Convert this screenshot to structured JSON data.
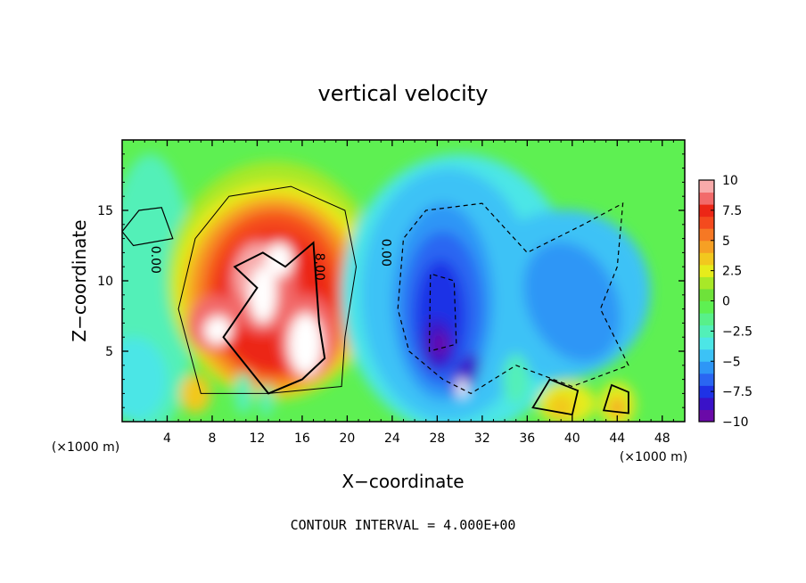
{
  "chart_data": {
    "type": "heatmap",
    "title": "vertical velocity",
    "xlabel": "X−coordinate",
    "ylabel": "Z−coordinate",
    "x_unit": "(×1000 m)",
    "x_unit_right": "(×1000 m)",
    "xlim": [
      0,
      50
    ],
    "ylim": [
      0,
      20
    ],
    "x_ticks": [
      4,
      8,
      12,
      16,
      20,
      24,
      28,
      32,
      36,
      40,
      44,
      48
    ],
    "y_ticks": [
      5,
      10,
      15
    ],
    "contour_interval_label": "CONTOUR INTERVAL = 4.000E+00",
    "contour_labels": [
      "0.00",
      "8.00",
      "0.00"
    ],
    "colorbar": {
      "range": [
        -10,
        10
      ],
      "tick_labels": [
        "10",
        "7.5",
        "5",
        "2.5",
        "0",
        "−2.5",
        "−5",
        "−7.5",
        "−10"
      ],
      "colors": [
        "#6a0aa8",
        "#3a12c8",
        "#1e32e6",
        "#2a66f2",
        "#2e96f6",
        "#3cc2f6",
        "#4ce6e6",
        "#52f0b8",
        "#58f08a",
        "#5ef052",
        "#6ee23a",
        "#a8e828",
        "#e6ec1c",
        "#f2c81e",
        "#f6a024",
        "#f67824",
        "#f44a1e",
        "#ec2616",
        "#f26a6a",
        "#f8aaaa"
      ]
    },
    "features": [
      {
        "name": "updraft core",
        "cx": 13.5,
        "cz": 8.5,
        "peak_w": 10
      },
      {
        "name": "downdraft core",
        "cx": 28.5,
        "cz": 6.5,
        "peak_w": -9
      },
      {
        "name": "secondary downdraft",
        "cx": 38.5,
        "cz": 8.0,
        "peak_w": -4
      }
    ]
  }
}
